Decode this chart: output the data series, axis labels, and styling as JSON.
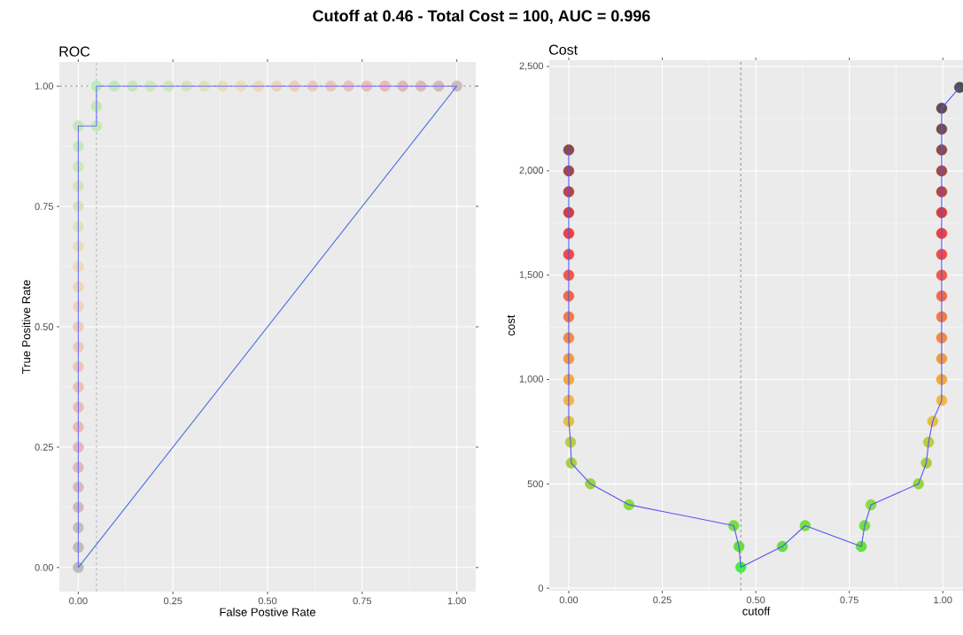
{
  "chart_data": [
    {
      "type": "scatter",
      "title": "Cutoff at 0.46 - Total Cost = 100, AUC = 0.996",
      "subtitle": "ROC",
      "xlabel": "False Postive Rate",
      "ylabel": "True Positive Rate",
      "grid": true,
      "xlim": [
        -0.05,
        1.05
      ],
      "ylim": [
        -0.05,
        1.05
      ],
      "xticks": [
        {
          "value": 0,
          "label": "0.00"
        },
        {
          "value": 0.25,
          "label": "0.25"
        },
        {
          "value": 0.5,
          "label": "0.50"
        },
        {
          "value": 0.75,
          "label": "0.75"
        },
        {
          "value": 1,
          "label": "1.00"
        }
      ],
      "yticks": [
        {
          "value": 0,
          "label": "0.00"
        },
        {
          "value": 0.25,
          "label": "0.25"
        },
        {
          "value": 0.5,
          "label": "0.50"
        },
        {
          "value": 0.75,
          "label": "0.75"
        },
        {
          "value": 1,
          "label": "1.00"
        }
      ],
      "ref_lines": [
        {
          "axis": "x",
          "value": 0.048,
          "color": "#7f95a8",
          "line_style": "dashed"
        },
        {
          "axis": "y",
          "value": 1,
          "color": "#555555",
          "line_style": "dashed"
        }
      ],
      "series": [
        {
          "type": "line",
          "color": "#6f6ff5",
          "line_style": "solid",
          "marker": "none",
          "x": [
            0,
            0,
            0,
            0,
            0,
            0,
            0,
            0,
            0,
            0,
            0,
            0,
            0,
            0,
            0,
            0,
            0,
            0,
            0,
            0,
            0,
            0,
            0,
            0.048,
            0.048,
            0.048,
            0.095,
            0.143,
            0.19,
            0.238,
            0.286,
            0.333,
            0.381,
            0.429,
            0.476,
            0.524,
            0.571,
            0.619,
            0.667,
            0.714,
            0.762,
            0.81,
            0.857,
            0.905,
            0.952,
            1
          ],
          "values": [
            0,
            0.042,
            0.083,
            0.125,
            0.167,
            0.208,
            0.25,
            0.292,
            0.333,
            0.375,
            0.417,
            0.458,
            0.5,
            0.542,
            0.583,
            0.625,
            0.667,
            0.708,
            0.75,
            0.792,
            0.833,
            0.875,
            0.917,
            0.917,
            0.958,
            1,
            1,
            1,
            1,
            1,
            1,
            1,
            1,
            1,
            1,
            1,
            1,
            1,
            1,
            1,
            1,
            1,
            1,
            1,
            1,
            1
          ]
        },
        {
          "type": "line",
          "color": "#4a6ee0",
          "line_style": "solid",
          "marker": "none",
          "x": [
            0,
            1
          ],
          "values": [
            0,
            1
          ]
        },
        {
          "marker": "circle",
          "x": [
            0,
            0,
            0,
            0,
            0,
            0,
            0,
            0,
            0,
            0,
            0,
            0,
            0,
            0,
            0,
            0,
            0,
            0,
            0,
            0,
            0,
            0,
            0,
            0.048,
            0.048,
            0.048,
            0.095,
            0.143,
            0.19,
            0.238,
            0.286,
            0.333,
            0.381,
            0.429,
            0.476,
            0.524,
            0.571,
            0.619,
            0.667,
            0.714,
            0.762,
            0.81,
            0.857,
            0.905,
            0.952,
            1
          ],
          "values": [
            0,
            0.042,
            0.083,
            0.125,
            0.167,
            0.208,
            0.25,
            0.292,
            0.333,
            0.375,
            0.417,
            0.458,
            0.5,
            0.542,
            0.583,
            0.625,
            0.667,
            0.708,
            0.75,
            0.792,
            0.833,
            0.875,
            0.917,
            0.917,
            0.958,
            1,
            1,
            1,
            1,
            1,
            1,
            1,
            1,
            1,
            1,
            1,
            1,
            1,
            1,
            1,
            1,
            1,
            1,
            1,
            1,
            1
          ],
          "colors": [
            "#bcbcbc",
            "#c1bbbb",
            "#c7bbbb",
            "#cdbbbb",
            "#d4baba",
            "#dcb9b9",
            "#e3b8b8",
            "#ecb8b8",
            "#ecbaba",
            "#ecbfba",
            "#ecc4ba",
            "#ecc9ba",
            "#eccdb9",
            "#ecd3b9",
            "#ecd7b9",
            "#ecdcb9",
            "#e8deba",
            "#dde2b9",
            "#d8e2b9",
            "#d2e4b9",
            "#cde7b9",
            "#c8e7b9",
            "#c3e7b9",
            "#c8e7b9",
            "#c3e7b9",
            "#b9ecb9",
            "#c3e7b9",
            "#c8e7b9",
            "#cde7b9",
            "#d2e4b9",
            "#d8e2b9",
            "#dde2b9",
            "#e8deba",
            "#ecdcb9",
            "#ecd7b9",
            "#ecd3b9",
            "#eccdb9",
            "#ecc9ba",
            "#ecc4ba",
            "#ecbfba",
            "#ecbaba",
            "#ecb8b8",
            "#e3b8b8",
            "#dcb9b9",
            "#d4baba",
            "#cdbbbb"
          ]
        }
      ]
    },
    {
      "type": "scatter",
      "subtitle": "Cost",
      "xlabel": "cutoff",
      "ylabel": "cost",
      "grid": true,
      "xlim": [
        -0.052,
        1.054
      ],
      "ylim": [
        -12,
        2530
      ],
      "xticks": [
        {
          "value": 0,
          "label": "0.00"
        },
        {
          "value": 0.25,
          "label": "0.25"
        },
        {
          "value": 0.5,
          "label": "0.50"
        },
        {
          "value": 0.75,
          "label": "0.75"
        },
        {
          "value": 1,
          "label": "1.00"
        }
      ],
      "yticks": [
        0,
        500,
        {
          "value": 1000,
          "label": "1,000"
        },
        {
          "value": 1500,
          "label": "1,500"
        },
        {
          "value": 2000,
          "label": "2,000"
        },
        {
          "value": 2500,
          "label": "2,500"
        }
      ],
      "ref_lines": [
        {
          "axis": "x",
          "value": 0.46,
          "color": "#555555",
          "line_style": "dashed"
        }
      ],
      "series": [
        {
          "type": "line",
          "color": "#5555f0",
          "line_style": "solid",
          "marker": "none",
          "x": [
            0,
            0,
            0,
            0,
            0,
            0,
            0,
            0,
            0,
            0,
            0,
            0,
            0,
            0,
            0.005,
            0.007,
            0.058,
            0.161,
            0.441,
            0.455,
            0.46,
            0.571,
            0.632,
            0.782,
            0.791,
            0.808,
            0.935,
            0.956,
            0.962,
            0.973,
            0.997,
            0.997,
            0.997,
            0.997,
            0.997,
            0.997,
            0.997,
            0.997,
            0.997,
            0.997,
            0.997,
            0.997,
            0.997,
            0.997,
            0.997,
            1.045
          ],
          "values": [
            2100,
            2000,
            1900,
            1800,
            1700,
            1600,
            1500,
            1400,
            1300,
            1200,
            1100,
            1000,
            900,
            800,
            700,
            600,
            500,
            400,
            300,
            200,
            100,
            200,
            300,
            200,
            300,
            400,
            500,
            600,
            700,
            800,
            900,
            1000,
            1100,
            1200,
            1300,
            1400,
            1500,
            1600,
            1700,
            1800,
            1900,
            2000,
            2100,
            2200,
            2300,
            2400
          ]
        },
        {
          "marker": "circle",
          "x": [
            0,
            0,
            0,
            0,
            0,
            0,
            0,
            0,
            0,
            0,
            0,
            0,
            0,
            0,
            0.005,
            0.007,
            0.058,
            0.161,
            0.441,
            0.455,
            0.46,
            0.571,
            0.632,
            0.782,
            0.791,
            0.808,
            0.935,
            0.956,
            0.962,
            0.973,
            0.997,
            0.997,
            0.997,
            0.997,
            0.997,
            0.997,
            0.997,
            0.997,
            0.997,
            0.997,
            0.997,
            0.997,
            0.997,
            0.997,
            0.997,
            1.045
          ],
          "values": [
            2100,
            2000,
            1900,
            1800,
            1700,
            1600,
            1500,
            1400,
            1300,
            1200,
            1100,
            1000,
            900,
            800,
            700,
            600,
            500,
            400,
            300,
            200,
            100,
            200,
            300,
            200,
            300,
            400,
            500,
            600,
            700,
            800,
            900,
            1000,
            1100,
            1200,
            1300,
            1400,
            1500,
            1600,
            1700,
            1800,
            1900,
            2000,
            2100,
            2200,
            2300,
            2400
          ],
          "colors": [
            "#884a4a",
            "#a04848",
            "#b84444",
            "#d04040",
            "#ee4040",
            "#f04a48",
            "#f05a48",
            "#f06a48",
            "#f07a48",
            "#f08a45",
            "#f09a45",
            "#f0a845",
            "#f0b845",
            "#e0c048",
            "#bbcc44",
            "#aacc44",
            "#99d444",
            "#88dd44",
            "#77dd44",
            "#66dd44",
            "#44ee44",
            "#66dd44",
            "#77dd44",
            "#66dd44",
            "#77dd44",
            "#88dd44",
            "#99d444",
            "#aacc44",
            "#bbcc44",
            "#e0c048",
            "#f0b845",
            "#f0a845",
            "#f09a45",
            "#f08a45",
            "#f07a48",
            "#f06a48",
            "#f05a48",
            "#f04a48",
            "#ee4040",
            "#d04040",
            "#b84444",
            "#a04848",
            "#884a4a",
            "#744c4c",
            "#604c4c",
            "#505050"
          ]
        }
      ]
    }
  ]
}
